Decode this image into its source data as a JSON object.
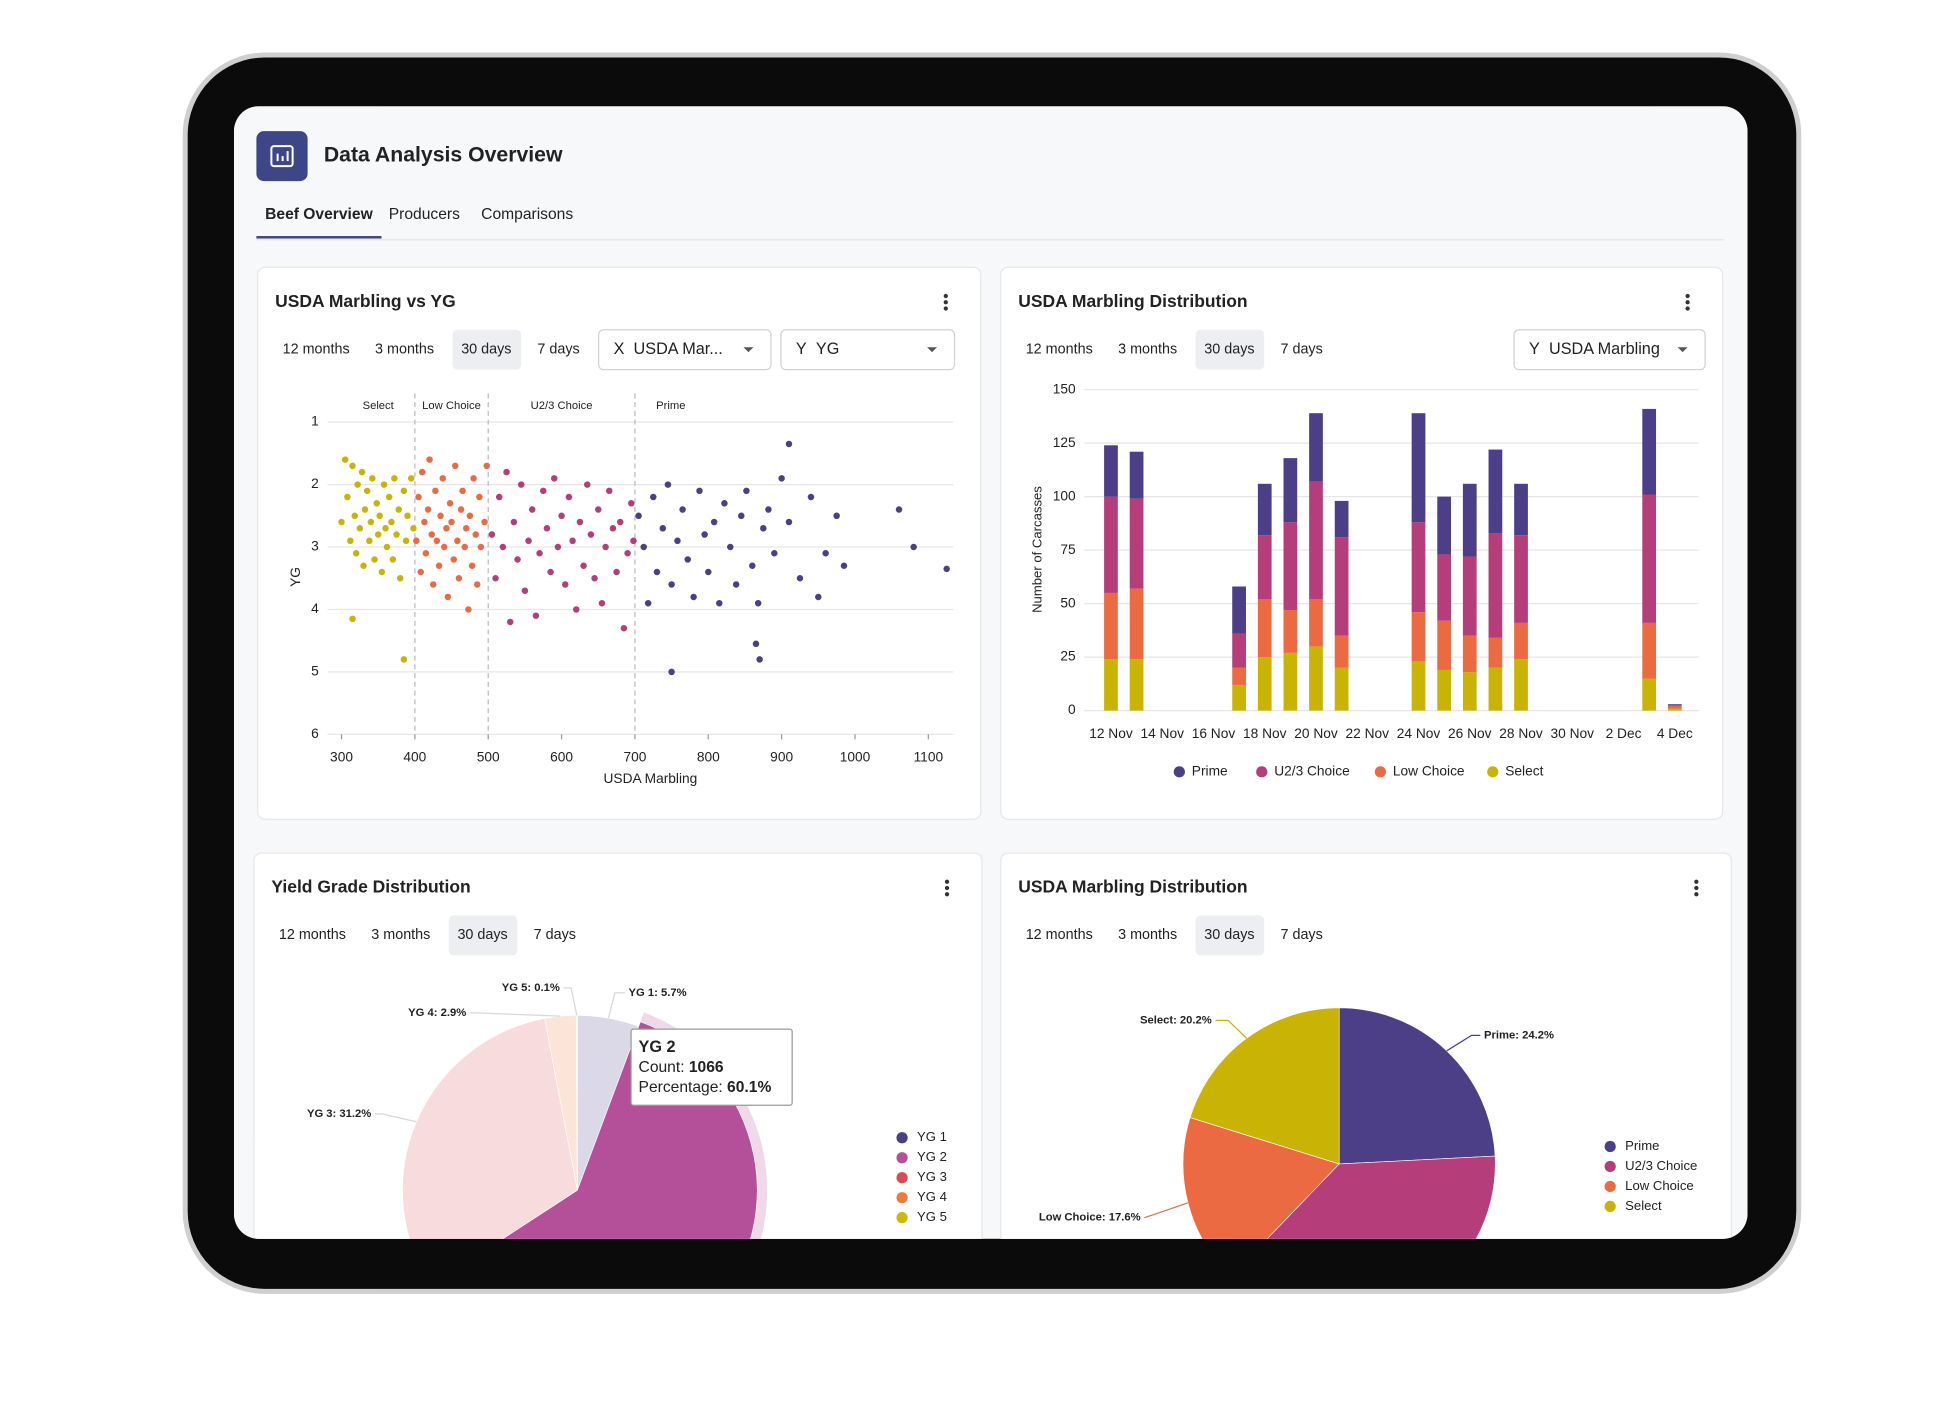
{
  "header": {
    "title": "Data Analysis Overview"
  },
  "tabs": [
    "Beef Overview",
    "Producers",
    "Comparisons"
  ],
  "active_tab": 0,
  "cards": [
    {
      "ranges": [
        "12 months",
        "3 months",
        "30 days",
        "7 days"
      ],
      "selected_range": 2,
      "selects": [
        {
          "axis": "X",
          "value": "USDA Mar..."
        },
        {
          "axis": "Y",
          "value": "YG"
        }
      ]
    },
    {
      "ranges": [
        "12 months",
        "3 months",
        "30 days",
        "7 days"
      ],
      "selected_range": 2,
      "selects": [
        {
          "axis": "Y",
          "value": "USDA Marbling"
        }
      ]
    },
    {
      "ranges": [
        "12 months",
        "3 months",
        "30 days",
        "7 days"
      ],
      "selected_range": 2
    },
    {
      "ranges": [
        "12 months",
        "3 months",
        "30 days",
        "7 days"
      ],
      "selected_range": 2
    }
  ],
  "chart_data": [
    {
      "type": "scatter",
      "title": "USDA Marbling vs YG",
      "x_label": "USDA Marbling",
      "y_label": "YG",
      "xlim": [
        281,
        1134
      ],
      "xticks": [
        300,
        400,
        500,
        600,
        700,
        800,
        900,
        1000,
        1100
      ],
      "ylim": [
        1,
        6
      ],
      "yticks": [
        1,
        2,
        3,
        4,
        5,
        6
      ],
      "y_inverted": true,
      "grid": true,
      "dividers": [
        400,
        500,
        700
      ],
      "annotations": [
        {
          "text": "Select",
          "x": 350
        },
        {
          "text": "Low Choice",
          "x": 450
        },
        {
          "text": "U2/3 Choice",
          "x": 600
        },
        {
          "text": "Prime",
          "x": 749
        }
      ],
      "series": [
        {
          "color": "#c9b406",
          "x": [
            300,
            305,
            308,
            312,
            315,
            318,
            320,
            322,
            325,
            328,
            330,
            332,
            335,
            338,
            340,
            342,
            345,
            348,
            350,
            352,
            355,
            358,
            360,
            362,
            365,
            368,
            370,
            372,
            375,
            378,
            380,
            385,
            388,
            390,
            395,
            398,
            315,
            385
          ],
          "y": [
            2.6,
            1.6,
            2.2,
            2.9,
            1.7,
            2.5,
            3.1,
            2.0,
            2.7,
            1.8,
            3.3,
            2.4,
            2.1,
            2.9,
            2.6,
            1.9,
            3.2,
            2.3,
            2.8,
            2.5,
            3.4,
            2.0,
            2.7,
            3.0,
            2.2,
            2.6,
            3.2,
            1.9,
            2.8,
            2.4,
            3.5,
            2.1,
            2.9,
            2.5,
            1.9,
            2.7,
            4.15,
            4.8
          ]
        },
        {
          "color": "#eb6a42",
          "x": [
            402,
            405,
            408,
            410,
            413,
            415,
            418,
            420,
            423,
            425,
            428,
            430,
            433,
            435,
            438,
            440,
            443,
            445,
            448,
            450,
            453,
            455,
            458,
            460,
            463,
            465,
            468,
            470,
            473,
            475,
            478,
            480,
            483,
            485,
            488,
            490,
            495,
            498
          ],
          "y": [
            2.9,
            2.2,
            3.4,
            1.8,
            2.6,
            3.1,
            2.4,
            1.6,
            2.8,
            3.6,
            2.1,
            2.9,
            3.3,
            2.5,
            1.9,
            3.0,
            2.7,
            3.8,
            2.3,
            2.6,
            3.2,
            1.7,
            2.9,
            3.5,
            2.4,
            2.1,
            3.0,
            2.7,
            4.0,
            2.5,
            3.3,
            1.9,
            2.8,
            3.6,
            2.2,
            3.0,
            2.6,
            1.7
          ]
        },
        {
          "color": "#b53e7a",
          "x": [
            505,
            510,
            515,
            520,
            525,
            530,
            535,
            540,
            545,
            550,
            555,
            560,
            565,
            570,
            575,
            580,
            585,
            590,
            595,
            600,
            605,
            610,
            615,
            620,
            625,
            630,
            635,
            640,
            645,
            650,
            655,
            660,
            665,
            670,
            675,
            680,
            685,
            690,
            695,
            698
          ],
          "y": [
            2.8,
            3.5,
            2.2,
            3.0,
            1.8,
            4.2,
            2.6,
            3.2,
            2.0,
            3.7,
            2.9,
            2.4,
            4.1,
            3.1,
            2.1,
            2.7,
            3.4,
            1.9,
            3.0,
            2.5,
            3.6,
            2.2,
            2.9,
            4.0,
            2.6,
            3.3,
            2.0,
            2.8,
            3.5,
            2.4,
            3.9,
            3.0,
            2.1,
            2.7,
            3.4,
            2.6,
            4.3,
            3.1,
            2.3,
            2.9
          ]
        },
        {
          "color": "#4c3f87",
          "x": [
            705,
            712,
            718,
            725,
            730,
            738,
            745,
            750,
            758,
            765,
            772,
            780,
            788,
            795,
            800,
            808,
            815,
            822,
            830,
            838,
            845,
            852,
            860,
            868,
            875,
            882,
            890,
            900,
            910,
            925,
            940,
            950,
            960,
            975,
            985,
            1060,
            1080,
            1125,
            750,
            870,
            865,
            910
          ],
          "y": [
            2.5,
            3.0,
            3.9,
            2.2,
            3.4,
            2.7,
            2.0,
            3.6,
            2.9,
            2.4,
            3.2,
            3.8,
            2.1,
            2.8,
            3.4,
            2.6,
            3.9,
            2.3,
            3.0,
            3.6,
            2.5,
            2.1,
            3.3,
            3.9,
            2.7,
            2.4,
            3.1,
            1.9,
            2.6,
            3.5,
            2.2,
            3.8,
            3.1,
            2.5,
            3.3,
            2.4,
            3.0,
            3.35,
            5.0,
            4.8,
            4.55,
            1.35
          ]
        }
      ]
    },
    {
      "type": "stacked_bar",
      "title": "USDA Marbling Distribution",
      "y_label": "Number of Carcasses",
      "categories": [
        "12 Nov",
        null,
        "14 Nov",
        null,
        "16 Nov",
        null,
        "18 Nov",
        null,
        "20 Nov",
        null,
        "22 Nov",
        null,
        "24 Nov",
        null,
        "26 Nov",
        null,
        "28 Nov",
        null,
        "30 Nov",
        null,
        "2 Dec",
        null,
        "4 Dec"
      ],
      "ylim": [
        0,
        150
      ],
      "yticks": [
        0,
        25,
        50,
        75,
        100,
        125,
        150
      ],
      "grid": true,
      "legend": "bottom",
      "series": [
        {
          "name": "Prime",
          "color": "#4c3f87",
          "values": [
            24,
            22,
            null,
            null,
            null,
            22,
            24,
            30,
            32,
            17,
            null,
            null,
            51,
            27,
            34,
            39,
            24,
            null,
            null,
            null,
            null,
            40,
            0.5
          ]
        },
        {
          "name": "U2/3 Choice",
          "color": "#b53e7a",
          "values": [
            45,
            42,
            null,
            null,
            null,
            16,
            30,
            41,
            55,
            46,
            null,
            null,
            42,
            31,
            37,
            49,
            41,
            null,
            null,
            null,
            null,
            60,
            0.5
          ]
        },
        {
          "name": "Low Choice",
          "color": "#eb6a42",
          "values": [
            31,
            33,
            null,
            null,
            null,
            8,
            27,
            20,
            22,
            15,
            null,
            null,
            23,
            23,
            17,
            14,
            17,
            null,
            null,
            null,
            null,
            26,
            1
          ]
        },
        {
          "name": "Select",
          "color": "#c9b406",
          "values": [
            24,
            24,
            null,
            null,
            null,
            12,
            25,
            27,
            30,
            20,
            null,
            null,
            23,
            19,
            18,
            20,
            24,
            null,
            null,
            null,
            null,
            15,
            1
          ]
        }
      ]
    },
    {
      "type": "pie",
      "title": "Yield Grade Distribution",
      "categories": [
        "YG 1",
        "YG 2",
        "YG 3",
        "YG 4",
        "YG 5"
      ],
      "values": [
        5.7,
        60.1,
        31.2,
        2.9,
        0.1
      ],
      "value_labels": [
        "YG 1: 5.7%",
        null,
        "YG 3: 31.2%",
        "YG 4: 2.9%",
        "YG 5: 0.1%"
      ],
      "colors": [
        "#4c3f87",
        "#b4509a",
        "#dc4a55",
        "#ee7a3e",
        "#d1b60a"
      ],
      "highlight": 1,
      "legend": "right",
      "tooltip": {
        "title": "YG 2",
        "lines": [
          {
            "label": "Count: ",
            "value": "1066"
          },
          {
            "label": "Percentage: ",
            "value": "60.1%"
          }
        ]
      }
    },
    {
      "type": "pie",
      "title": "USDA Marbling Distribution",
      "categories": [
        "Prime",
        "U2/3 Choice",
        "Low Choice",
        "Select"
      ],
      "values": [
        24.2,
        38.0,
        17.6,
        20.2
      ],
      "value_labels": [
        "Prime: 24.2%",
        null,
        "Low Choice: 17.6%",
        "Select: 20.2%"
      ],
      "colors": [
        "#4c3f87",
        "#b53e7a",
        "#eb6a42",
        "#c9b406"
      ],
      "legend": "right"
    }
  ]
}
